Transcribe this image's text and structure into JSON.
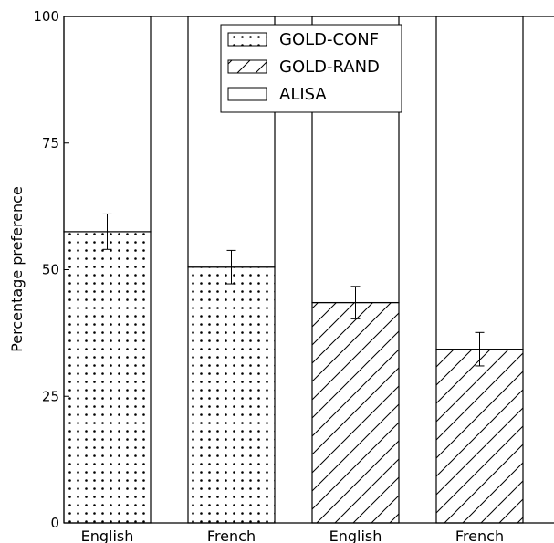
{
  "chart_data": {
    "type": "bar",
    "stacked": true,
    "categories": [
      "English",
      "French",
      "English",
      "French"
    ],
    "series": [
      {
        "name": "GOLD-CONF",
        "pattern": "dots",
        "values": [
          57.5,
          50.5,
          null,
          null
        ],
        "error": [
          3.5,
          3.3,
          null,
          null
        ]
      },
      {
        "name": "GOLD-RAND",
        "pattern": "hatch",
        "values": [
          null,
          null,
          43.5,
          34.3
        ],
        "error": [
          null,
          null,
          3.2,
          3.3
        ]
      },
      {
        "name": "ALISA",
        "pattern": "plain",
        "values": [
          42.5,
          49.5,
          56.5,
          65.7
        ]
      }
    ],
    "ylabel": "Percentage preference",
    "xlabel": "",
    "ylim": [
      0,
      100
    ],
    "yticks": [
      0,
      25,
      50,
      75,
      100
    ],
    "grid": false,
    "legend": "top-center"
  },
  "colors": {
    "fill": "#ffffff",
    "stroke": "#000000"
  }
}
